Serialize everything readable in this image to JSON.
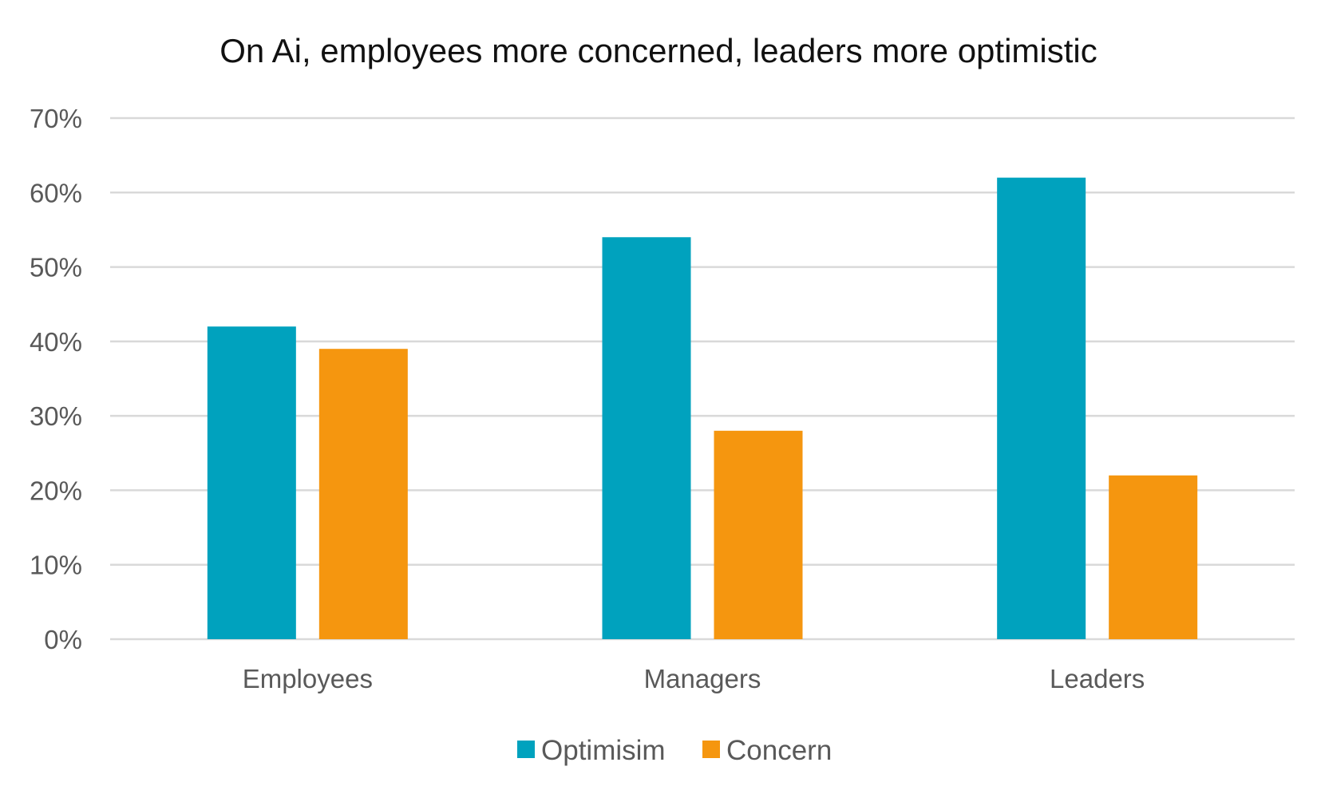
{
  "chart_data": {
    "type": "bar",
    "title": "On Ai, employees more concerned, leaders more optimistic",
    "xlabel": "",
    "ylabel": "",
    "categories": [
      "Employees",
      "Managers",
      "Leaders"
    ],
    "series": [
      {
        "name": "Optimisim",
        "values": [
          0.42,
          0.54,
          0.62
        ],
        "color": "#00A2BE"
      },
      {
        "name": "Concern",
        "values": [
          0.39,
          0.28,
          0.22
        ],
        "color": "#F5960F"
      }
    ],
    "ylim": [
      0,
      0.7
    ],
    "yticks": [
      "0%",
      "10%",
      "20%",
      "30%",
      "40%",
      "50%",
      "60%",
      "70%"
    ],
    "grid": true,
    "gridline_color": "#d9d9d9",
    "legend_position": "bottom"
  }
}
